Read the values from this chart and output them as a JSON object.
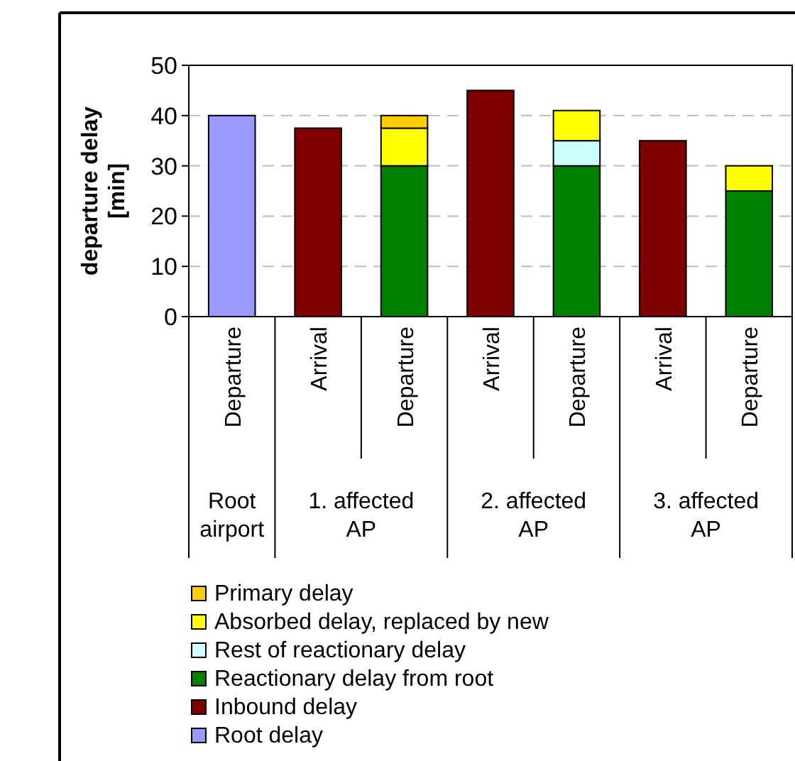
{
  "chart_data": {
    "type": "bar",
    "stacked": true,
    "ylabel": "departure delay [min]",
    "categories": [
      "Departure",
      "Arrival",
      "Departure",
      "Arrival",
      "Departure",
      "Arrival",
      "Departure"
    ],
    "series": [
      {
        "name": "Root delay",
        "color": "#9999ff",
        "values": [
          40,
          null,
          null,
          null,
          null,
          null,
          null
        ]
      },
      {
        "name": "Inbound delay",
        "color": "#800000",
        "values": [
          null,
          37.5,
          null,
          45,
          null,
          35,
          null
        ]
      },
      {
        "name": "Reactionary delay from root",
        "color": "#008000",
        "values": [
          null,
          null,
          30,
          null,
          30,
          null,
          25
        ]
      },
      {
        "name": "Rest of reactionary delay",
        "color": "#ccffff",
        "values": [
          null,
          null,
          null,
          null,
          5,
          null,
          null
        ]
      },
      {
        "name": "Absorbed delay, replaced by new",
        "color": "#ffff00",
        "values": [
          null,
          null,
          7.5,
          null,
          6,
          null,
          5
        ]
      },
      {
        "name": "Primary delay",
        "color": "#ffcc00",
        "values": [
          null,
          null,
          2.5,
          null,
          null,
          null,
          null
        ]
      }
    ],
    "ylim": [
      0,
      50
    ],
    "yticks": [
      0,
      10,
      20,
      30,
      40,
      50
    ],
    "grid": "y",
    "legend": "bottom",
    "annotations": [
      "Root airport",
      "1. affected AP",
      "2. affected AP",
      "3. affected AP"
    ]
  }
}
